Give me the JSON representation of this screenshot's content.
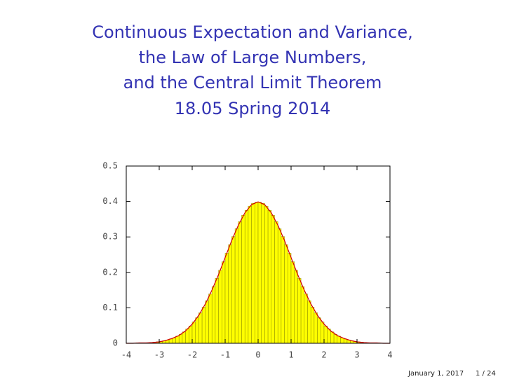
{
  "slide": {
    "title_lines": [
      "Continuous Expectation and Variance,",
      "the Law of Large Numbers,",
      "and the Central Limit Theorem",
      "18.05 Spring 2014"
    ],
    "date": "January 1, 2017",
    "page": "1 / 24"
  },
  "chart_data": {
    "type": "histogram",
    "bins": [
      -4,
      -3.9,
      -3.8,
      -3.7,
      -3.6,
      -3.5,
      -3.4,
      -3.3,
      -3.2,
      -3.1,
      -3,
      -2.9,
      -2.8,
      -2.7,
      -2.6,
      -2.5,
      -2.4,
      -2.3,
      -2.2,
      -2.1,
      -2,
      -1.9,
      -1.8,
      -1.7,
      -1.6,
      -1.5,
      -1.4,
      -1.3,
      -1.2,
      -1.1,
      -1,
      -0.9,
      -0.8,
      -0.7,
      -0.6,
      -0.5,
      -0.4,
      -0.3,
      -0.2,
      -0.1,
      0,
      0.1,
      0.2,
      0.3,
      0.4,
      0.5,
      0.6,
      0.7,
      0.8,
      0.9,
      1,
      1.1,
      1.2,
      1.3,
      1.4,
      1.5,
      1.6,
      1.7,
      1.8,
      1.9,
      2,
      2.1,
      2.2,
      2.3,
      2.4,
      2.5,
      2.6,
      2.7,
      2.8,
      2.9,
      3,
      3.1,
      3.2,
      3.3,
      3.4,
      3.5,
      3.6,
      3.7,
      3.8,
      3.9,
      4
    ],
    "values": [
      0,
      0,
      0,
      0.001,
      0.001,
      0.001,
      0.001,
      0.002,
      0.003,
      0.004,
      0.005,
      0.007,
      0.009,
      0.012,
      0.015,
      0.02,
      0.025,
      0.032,
      0.04,
      0.049,
      0.06,
      0.072,
      0.086,
      0.102,
      0.12,
      0.139,
      0.16,
      0.183,
      0.206,
      0.23,
      0.254,
      0.278,
      0.301,
      0.323,
      0.343,
      0.361,
      0.375,
      0.387,
      0.395,
      0.398,
      0.398,
      0.395,
      0.387,
      0.375,
      0.361,
      0.343,
      0.323,
      0.301,
      0.278,
      0.254,
      0.23,
      0.206,
      0.183,
      0.16,
      0.139,
      0.12,
      0.102,
      0.086,
      0.072,
      0.06,
      0.049,
      0.04,
      0.032,
      0.025,
      0.02,
      0.015,
      0.012,
      0.009,
      0.007,
      0.005,
      0.004,
      0.003,
      0.002,
      0.001,
      0.001,
      0.001,
      0.001,
      0,
      0,
      0
    ],
    "color": "#ffff00",
    "edge_color": "#8a8a00",
    "curve": {
      "color": "#d40000",
      "x": [
        -4,
        -3.8,
        -3.6,
        -3.4,
        -3.2,
        -3,
        -2.8,
        -2.6,
        -2.4,
        -2.2,
        -2,
        -1.8,
        -1.6,
        -1.4,
        -1.2,
        -1,
        -0.8,
        -0.6,
        -0.4,
        -0.2,
        0,
        0.2,
        0.4,
        0.6,
        0.8,
        1,
        1.2,
        1.4,
        1.6,
        1.8,
        2,
        2.2,
        2.4,
        2.6,
        2.8,
        3,
        3.2,
        3.4,
        3.6,
        3.8,
        4
      ],
      "y": [
        0,
        0,
        0.001,
        0.001,
        0.002,
        0.004,
        0.008,
        0.014,
        0.022,
        0.035,
        0.054,
        0.079,
        0.111,
        0.15,
        0.194,
        0.242,
        0.29,
        0.333,
        0.368,
        0.391,
        0.399,
        0.391,
        0.368,
        0.333,
        0.29,
        0.242,
        0.194,
        0.15,
        0.111,
        0.079,
        0.054,
        0.035,
        0.022,
        0.014,
        0.008,
        0.004,
        0.002,
        0.001,
        0.001,
        0,
        0
      ]
    },
    "xlim": [
      -4,
      4
    ],
    "ylim": [
      0,
      0.5
    ],
    "xticks": [
      -4,
      -3,
      -2,
      -1,
      0,
      1,
      2,
      3,
      4
    ],
    "yticks": [
      0,
      0.1,
      0.2,
      0.3,
      0.4,
      0.5
    ]
  }
}
